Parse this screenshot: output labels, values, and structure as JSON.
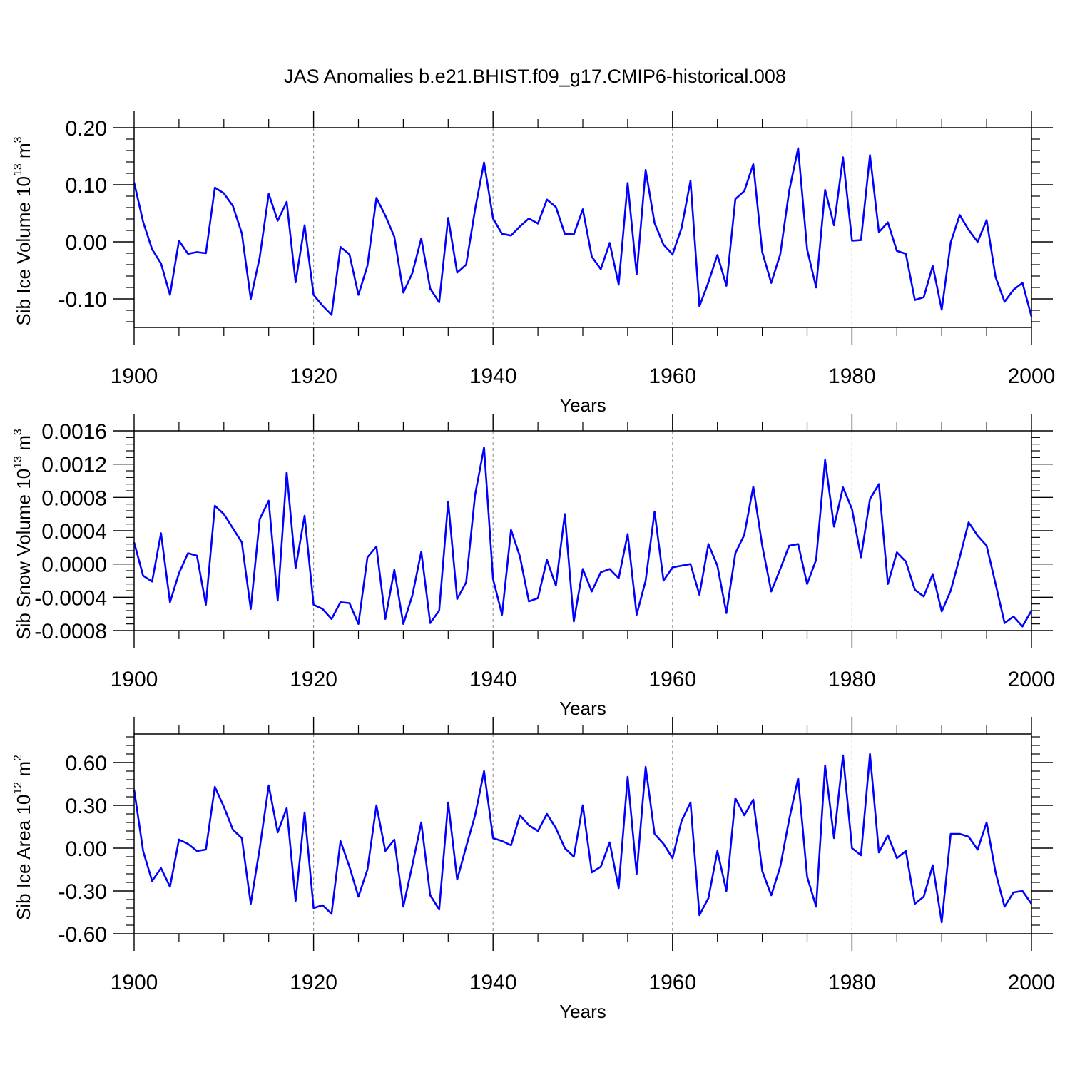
{
  "title": "JAS Anomalies b.e21.BHIST.f09_g17.CMIP6-historical.008",
  "colors": {
    "line": "#0000ff",
    "axis": "#000000",
    "grid": "#999999",
    "background": "#ffffff"
  },
  "chart_data": [
    {
      "type": "line",
      "name": "sib-ice-volume",
      "xlabel": "Years",
      "ylabel": {
        "text": "Sib Ice Volume 10",
        "sup1": "13",
        "mid": " m",
        "sup2": "3"
      },
      "xlim": [
        1900,
        2000
      ],
      "ylim": [
        -0.15,
        0.2
      ],
      "xticks": [
        1900,
        1920,
        1940,
        1960,
        1980,
        2000
      ],
      "xtick_labels": [
        "1900",
        "1920",
        "1940",
        "1960",
        "1980",
        "2000"
      ],
      "yticks": [
        0.2,
        0.1,
        0.0,
        -0.1
      ],
      "ytick_labels": [
        "0.20",
        "0.10",
        "0.00",
        "-0.10"
      ],
      "grid_x": [
        1920,
        1940,
        1960,
        1980
      ],
      "x_start": 1900,
      "values": [
        0.104,
        0.035,
        -0.013,
        -0.038,
        -0.093,
        0.002,
        -0.021,
        -0.018,
        -0.02,
        0.095,
        0.085,
        0.063,
        0.015,
        -0.1,
        -0.027,
        0.084,
        0.037,
        0.07,
        -0.071,
        0.029,
        -0.093,
        -0.112,
        -0.128,
        -0.009,
        -0.022,
        -0.093,
        -0.042,
        0.077,
        0.046,
        0.009,
        -0.089,
        -0.055,
        0.006,
        -0.082,
        -0.106,
        0.042,
        -0.054,
        -0.04,
        0.057,
        0.139,
        0.041,
        0.014,
        0.011,
        0.027,
        0.041,
        0.032,
        0.074,
        0.061,
        0.014,
        0.013,
        0.057,
        -0.026,
        -0.048,
        -0.002,
        -0.075,
        0.103,
        -0.057,
        0.126,
        0.033,
        -0.005,
        -0.022,
        0.024,
        0.107,
        -0.113,
        -0.071,
        -0.023,
        -0.077,
        0.075,
        0.089,
        0.136,
        -0.018,
        -0.072,
        -0.022,
        0.089,
        0.164,
        -0.013,
        -0.08,
        0.091,
        0.029,
        0.148,
        0.002,
        0.003,
        0.152,
        0.017,
        0.034,
        -0.016,
        -0.021,
        -0.102,
        -0.097,
        -0.042,
        -0.119,
        -0.001,
        0.047,
        0.021,
        0.0,
        0.038,
        -0.062,
        -0.105,
        -0.084,
        -0.072,
        -0.131
      ]
    },
    {
      "type": "line",
      "name": "sib-snow-volume",
      "xlabel": "Years",
      "ylabel": {
        "text": "Sib Snow Volume 10",
        "sup1": "13",
        "mid": " m",
        "sup2": "3"
      },
      "xlim": [
        1900,
        2000
      ],
      "ylim": [
        -0.0008,
        0.0016
      ],
      "xticks": [
        1900,
        1920,
        1940,
        1960,
        1980,
        2000
      ],
      "xtick_labels": [
        "1900",
        "1920",
        "1940",
        "1960",
        "1980",
        "2000"
      ],
      "yticks": [
        0.0016,
        0.0012,
        0.0008,
        0.0004,
        0.0,
        -0.0004,
        -0.0008
      ],
      "ytick_labels": [
        "0.0016",
        "0.0012",
        "0.0008",
        "0.0004",
        "0.0000",
        "-0.0004",
        "-0.0008"
      ],
      "grid_x": [
        1920,
        1940,
        1960,
        1980
      ],
      "x_start": 1900,
      "values": [
        0.00026,
        -0.00014,
        -0.00021,
        0.00037,
        -0.00046,
        -0.00011,
        0.00013,
        0.0001,
        -0.00049,
        0.0007,
        0.0006,
        0.00043,
        0.00026,
        -0.00054,
        0.00054,
        0.00076,
        -0.00044,
        0.0011,
        -5e-05,
        0.00058,
        -0.00049,
        -0.00054,
        -0.00066,
        -0.00046,
        -0.00047,
        -0.00072,
        8e-05,
        0.00021,
        -0.00066,
        -7e-05,
        -0.00072,
        -0.00038,
        0.00015,
        -0.00071,
        -0.00056,
        0.00075,
        -0.00042,
        -0.00022,
        0.00083,
        0.0014,
        -0.00018,
        -0.00061,
        0.00041,
        9e-05,
        -0.00045,
        -0.00041,
        5e-05,
        -0.00026,
        0.0006,
        -0.00069,
        -6e-05,
        -0.00033,
        -0.0001,
        -6e-05,
        -0.00017,
        0.00036,
        -0.00061,
        -0.0002,
        0.00063,
        -0.0002,
        -4e-05,
        -2e-05,
        0.0,
        -0.00037,
        0.00024,
        -2e-05,
        -0.00059,
        0.00013,
        0.00035,
        0.00093,
        0.00022,
        -0.00033,
        -6e-05,
        0.00022,
        0.00024,
        -0.00024,
        5e-05,
        0.00125,
        0.00045,
        0.00092,
        0.00066,
        8e-05,
        0.00078,
        0.00096,
        -0.00024,
        0.00014,
        3e-05,
        -0.00031,
        -0.00039,
        -0.00012,
        -0.00057,
        -0.00032,
        8e-05,
        0.0005,
        0.00034,
        0.00022,
        -0.00024,
        -0.00071,
        -0.00063,
        -0.00075,
        -0.00056
      ]
    },
    {
      "type": "line",
      "name": "sib-ice-area",
      "xlabel": "Years",
      "ylabel": {
        "text": "Sib Ice Area 10",
        "sup1": "12",
        "mid": " m",
        "sup2": "2"
      },
      "xlim": [
        1900,
        2000
      ],
      "ylim": [
        -0.6,
        0.8
      ],
      "xticks": [
        1900,
        1920,
        1940,
        1960,
        1980,
        2000
      ],
      "xtick_labels": [
        "1900",
        "1920",
        "1940",
        "1960",
        "1980",
        "2000"
      ],
      "yticks": [
        0.6,
        0.3,
        0.0,
        -0.3,
        -0.6
      ],
      "ytick_labels": [
        "0.60",
        "0.30",
        "0.00",
        "-0.30",
        "-0.60"
      ],
      "grid_x": [
        1920,
        1940,
        1960,
        1980
      ],
      "x_start": 1900,
      "values": [
        0.41,
        -0.02,
        -0.23,
        -0.14,
        -0.27,
        0.06,
        0.03,
        -0.02,
        -0.01,
        0.43,
        0.29,
        0.13,
        0.07,
        -0.39,
        0.0,
        0.44,
        0.11,
        0.28,
        -0.37,
        0.25,
        -0.42,
        -0.4,
        -0.46,
        0.05,
        -0.13,
        -0.34,
        -0.15,
        0.3,
        -0.02,
        0.06,
        -0.41,
        -0.12,
        0.18,
        -0.33,
        -0.43,
        0.32,
        -0.22,
        0.01,
        0.23,
        0.54,
        0.07,
        0.05,
        0.02,
        0.23,
        0.16,
        0.12,
        0.24,
        0.14,
        0.0,
        -0.06,
        0.3,
        -0.17,
        -0.13,
        0.04,
        -0.28,
        0.5,
        -0.18,
        0.57,
        0.1,
        0.03,
        -0.07,
        0.19,
        0.32,
        -0.47,
        -0.35,
        -0.02,
        -0.3,
        0.35,
        0.23,
        0.34,
        -0.16,
        -0.33,
        -0.13,
        0.2,
        0.49,
        -0.2,
        -0.41,
        0.58,
        0.07,
        0.65,
        0.0,
        -0.05,
        0.66,
        -0.03,
        0.09,
        -0.07,
        -0.02,
        -0.39,
        -0.34,
        -0.12,
        -0.52,
        0.1,
        0.1,
        0.08,
        -0.01,
        0.18,
        -0.17,
        -0.41,
        -0.31,
        -0.3,
        -0.39
      ]
    }
  ]
}
